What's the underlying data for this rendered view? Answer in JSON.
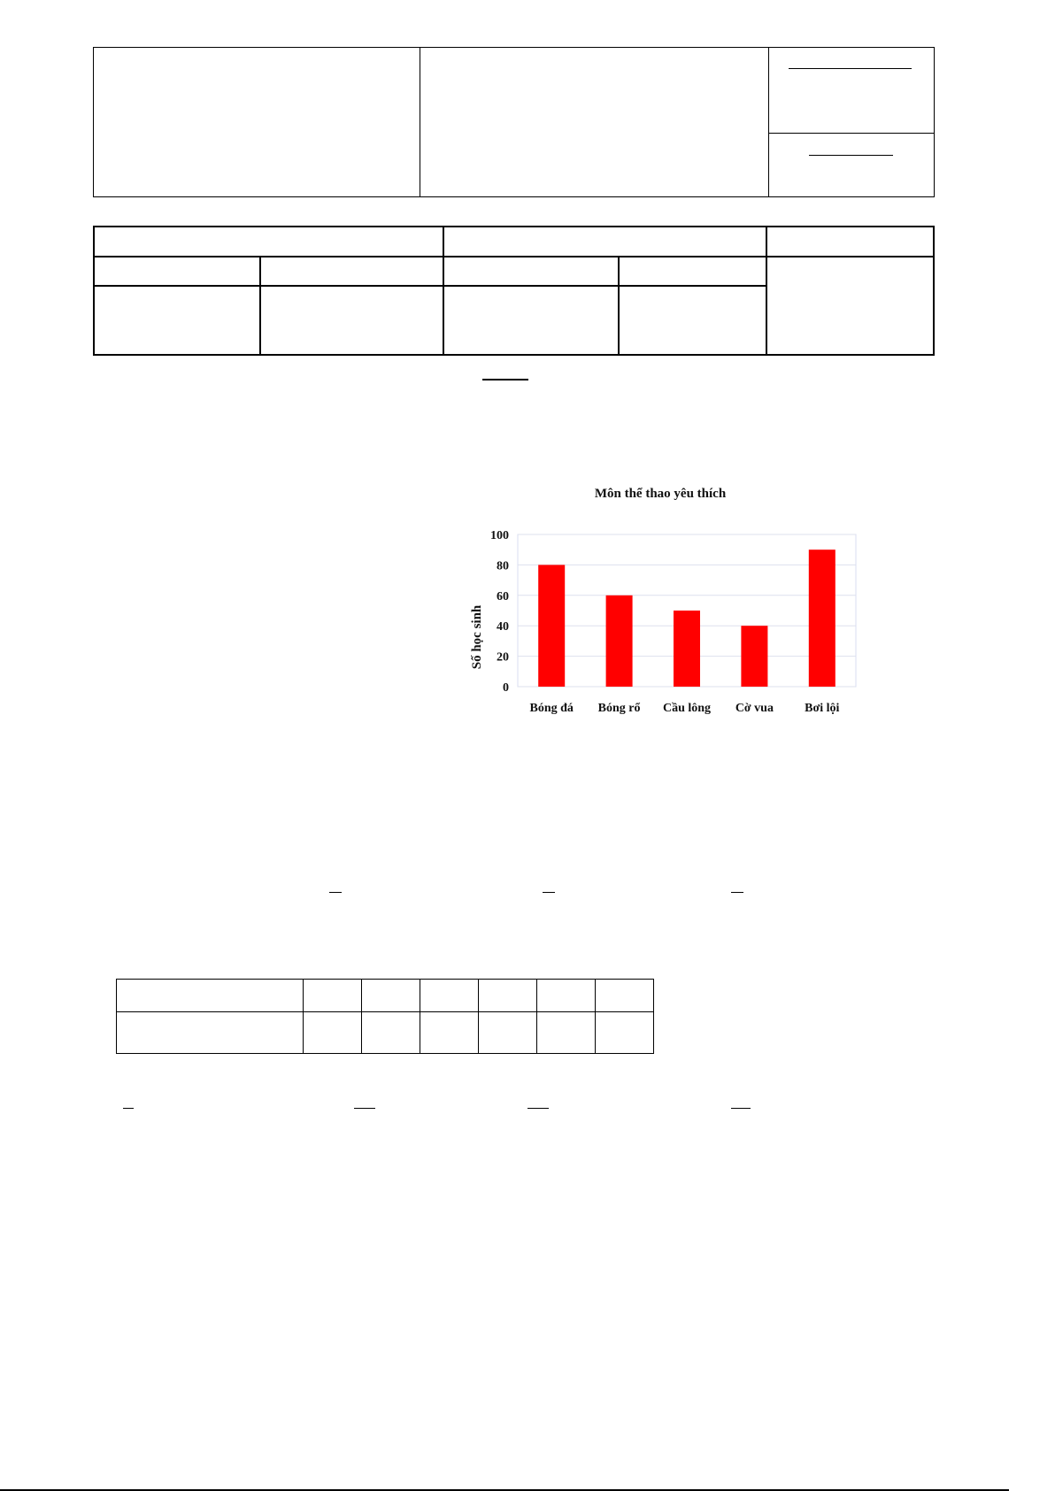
{
  "chart_data": {
    "type": "bar",
    "title": "Môn thể thao yêu thích",
    "xlabel": "",
    "ylabel": "Số học sinh",
    "categories": [
      "Bóng đá",
      "Bóng rổ",
      "Cầu lông",
      "Cờ vua",
      "Bơi lội"
    ],
    "values": [
      80,
      60,
      50,
      40,
      90
    ],
    "ylim": [
      0,
      100
    ],
    "yticks": [
      0,
      20,
      40,
      60,
      80,
      100
    ],
    "grid": true,
    "bar_color": "#ff0000"
  }
}
